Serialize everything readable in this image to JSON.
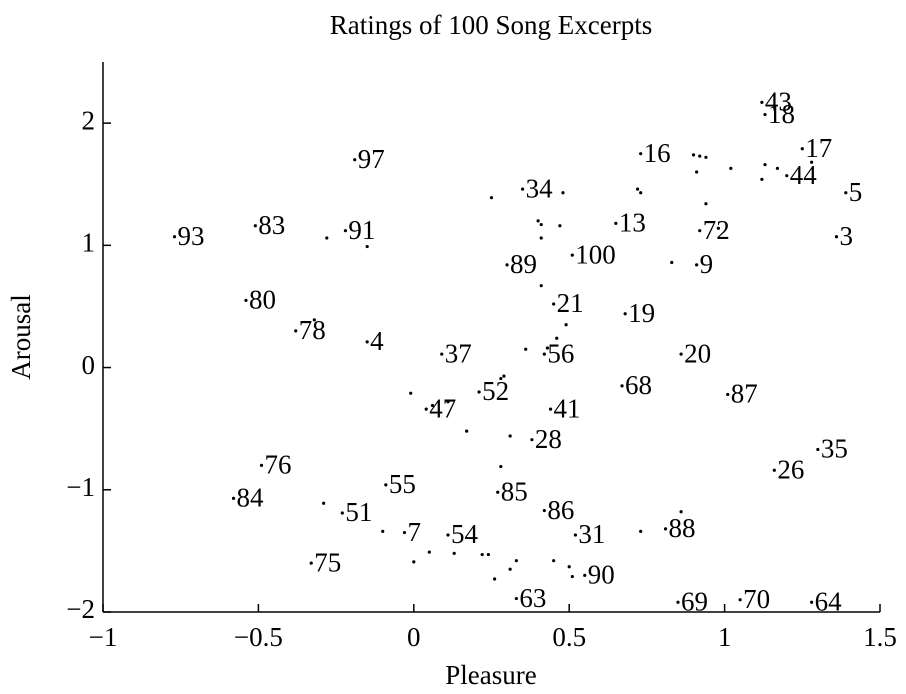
{
  "chart_data": {
    "type": "scatter",
    "title": "Ratings of 100 Song Excerpts",
    "x_label": "Pleasure",
    "y_label": "Arousal",
    "xlim": [
      -1,
      1.5
    ],
    "ylim": [
      -2,
      2.5
    ],
    "xticks": [
      {
        "value": -1,
        "label": "−1"
      },
      {
        "value": -0.5,
        "label": "−0.5"
      },
      0,
      0.5,
      1,
      1.5
    ],
    "yticks": [
      {
        "value": -2,
        "label": "−2"
      },
      {
        "value": -1,
        "label": "−1"
      },
      0,
      1,
      2
    ],
    "color": "#000000",
    "x": [
      1.12,
      1.13,
      1.25,
      1.2,
      1.39,
      1.36,
      0.73,
      -0.19,
      0.35,
      0.65,
      0.92,
      -0.77,
      -0.51,
      -0.22,
      0.51,
      0.3,
      0.91,
      -0.54,
      0.45,
      0.68,
      -0.38,
      -0.15,
      0.09,
      0.42,
      0.86,
      0.67,
      0.21,
      1.01,
      0.04,
      0.44,
      0.38,
      1.3,
      1.16,
      -0.49,
      -0.09,
      -0.58,
      0.27,
      -0.23,
      0.42,
      0.81,
      -0.03,
      0.11,
      0.52,
      -0.33,
      0.55,
      0.33,
      0.85,
      1.05,
      1.28,
      0.9,
      0.92,
      0.94,
      0.91,
      1.02,
      1.13,
      1.17,
      1.12,
      0.25,
      0.48,
      0.72,
      0.73,
      0.94,
      0.4,
      0.41,
      0.41,
      0.47,
      -0.28,
      -0.15,
      0.98,
      0.83,
      0.41,
      -0.32,
      0.46,
      0.49,
      0.43,
      0.28,
      0.29,
      -0.01,
      0.11,
      0.17,
      0.31,
      0.28,
      -0.29,
      -0.1,
      0.05,
      0.13,
      0.0,
      0.22,
      0.24,
      0.31,
      0.33,
      0.26,
      0.45,
      0.5,
      0.51,
      0.86,
      0.73,
      0.06,
      0.36,
      1.28
    ],
    "y": [
      2.17,
      2.07,
      1.79,
      1.57,
      1.43,
      1.07,
      1.75,
      1.7,
      1.46,
      1.18,
      1.12,
      1.07,
      1.16,
      1.12,
      0.92,
      0.84,
      0.84,
      0.55,
      0.52,
      0.44,
      0.3,
      0.21,
      0.11,
      0.11,
      0.11,
      -0.15,
      -0.2,
      -0.22,
      -0.34,
      -0.34,
      -0.59,
      -0.67,
      -0.84,
      -0.8,
      -0.96,
      -1.07,
      -1.02,
      -1.19,
      -1.17,
      -1.32,
      -1.35,
      -1.37,
      -1.37,
      -1.6,
      -1.7,
      -1.89,
      -1.92,
      -1.9,
      -1.92,
      1.74,
      1.73,
      1.72,
      1.6,
      1.63,
      1.66,
      1.63,
      1.54,
      1.39,
      1.43,
      1.46,
      1.43,
      1.34,
      1.2,
      1.17,
      1.06,
      1.16,
      1.06,
      0.99,
      1.14,
      0.86,
      0.67,
      0.39,
      0.24,
      0.35,
      0.16,
      -0.09,
      -0.07,
      -0.21,
      -0.28,
      -0.52,
      -0.56,
      -0.81,
      -1.11,
      -1.34,
      -1.51,
      -1.52,
      -1.59,
      -1.53,
      -1.53,
      -1.65,
      -1.58,
      -1.73,
      -1.58,
      -1.63,
      -1.71,
      -1.18,
      -1.34,
      -0.31,
      0.15,
      1.68
    ],
    "labels": [
      "43",
      "18",
      "17",
      "44",
      "5",
      "3",
      "16",
      "97",
      "34",
      "13",
      "72",
      "93",
      "83",
      "91",
      "100",
      "89",
      "9",
      "80",
      "21",
      "19",
      "78",
      "4",
      "37",
      "56",
      "20",
      "68",
      "52",
      "87",
      "47",
      "41",
      "28",
      "35",
      "26",
      "76",
      "55",
      "84",
      "85",
      "51",
      "86",
      "88",
      "7",
      "54",
      "31",
      "75",
      "90",
      "63",
      "69",
      "70",
      "64",
      null,
      null,
      null,
      null,
      null,
      null,
      null,
      null,
      null,
      null,
      null,
      null,
      null,
      null,
      null,
      null,
      null,
      null,
      null,
      null,
      null,
      null,
      null,
      null,
      null,
      null,
      null,
      null,
      null,
      null,
      null,
      null,
      null,
      null,
      null,
      null,
      null,
      null,
      null,
      null,
      null,
      null,
      null,
      null,
      null,
      null,
      null,
      null,
      null,
      null,
      null
    ]
  }
}
